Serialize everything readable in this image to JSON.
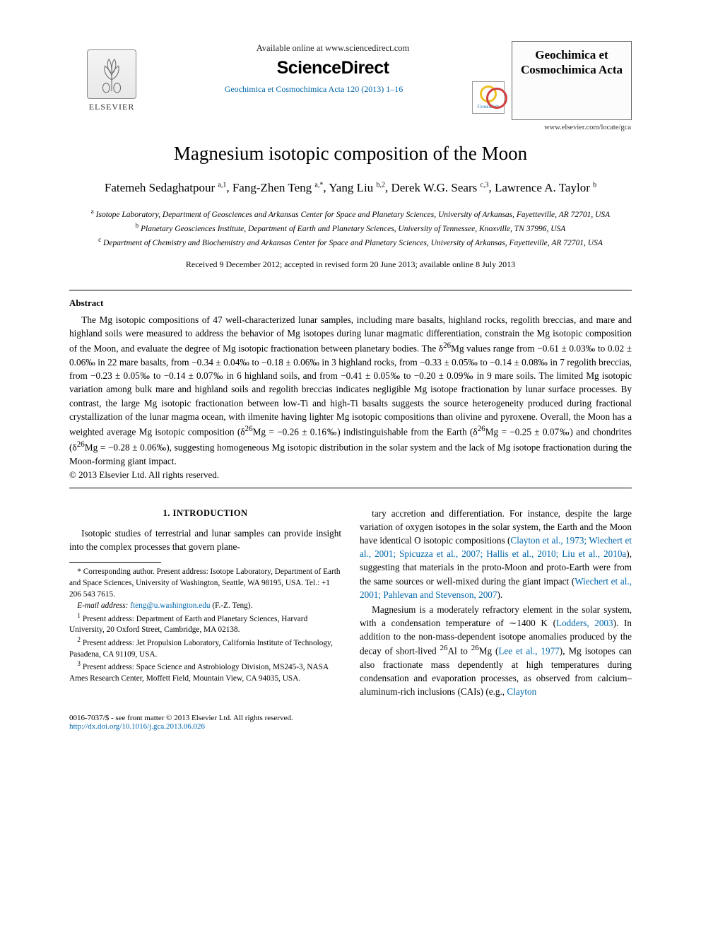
{
  "header": {
    "available_online": "Available online at www.sciencedirect.com",
    "sciencedirect": "ScienceDirect",
    "journal_line": "Geochimica et Cosmochimica Acta 120 (2013) 1–16",
    "elsevier_label": "ELSEVIER",
    "journal_cover": "Geochimica et Cosmochimica Acta",
    "locate": "www.elsevier.com/locate/gca"
  },
  "title": "Magnesium isotopic composition of the Moon",
  "authors_html": "Fatemeh Sedaghatpour <sup>a,1</sup>, Fang-Zhen Teng <sup>a,*</sup>, Yang Liu <sup>b,2</sup>, Derek W.G. Sears <sup>c,3</sup>, Lawrence A. Taylor <sup>b</sup>",
  "affiliations": [
    "<sup>a</sup> Isotope Laboratory, Department of Geosciences and Arkansas Center for Space and Planetary Sciences, University of Arkansas, Fayetteville, AR 72701, USA",
    "<sup>b</sup> Planetary Geosciences Institute, Department of Earth and Planetary Sciences, University of Tennessee, Knoxville, TN 37996, USA",
    "<sup>c</sup> Department of Chemistry and Biochemistry and Arkansas Center for Space and Planetary Sciences, University of Arkansas, Fayetteville, AR 72701, USA"
  ],
  "dates": "Received 9 December 2012; accepted in revised form 20 June 2013; available online 8 July 2013",
  "abstract": {
    "heading": "Abstract",
    "body": "The Mg isotopic compositions of 47 well-characterized lunar samples, including mare basalts, highland rocks, regolith breccias, and mare and highland soils were measured to address the behavior of Mg isotopes during lunar magmatic differentiation, constrain the Mg isotopic composition of the Moon, and evaluate the degree of Mg isotopic fractionation between planetary bodies. The δ<sup>26</sup>Mg values range from −0.61 ± 0.03‰ to 0.02 ± 0.06‰ in 22 mare basalts, from −0.34 ± 0.04‰ to −0.18 ± 0.06‰ in 3 highland rocks, from −0.33 ± 0.05‰ to −0.14 ± 0.08‰ in 7 regolith breccias, from −0.23 ± 0.05‰ to −0.14 ± 0.07‰ in 6 highland soils, and from −0.41 ± 0.05‰ to −0.20 ± 0.09‰ in 9 mare soils. The limited Mg isotopic variation among bulk mare and highland soils and regolith breccias indicates negligible Mg isotope fractionation by lunar surface processes. By contrast, the large Mg isotopic fractionation between low-Ti and high-Ti basalts suggests the source heterogeneity produced during fractional crystallization of the lunar magma ocean, with ilmenite having lighter Mg isotopic compositions than olivine and pyroxene. Overall, the Moon has a weighted average Mg isotopic composition (δ<sup>26</sup>Mg = −0.26 ± 0.16‰) indistinguishable from the Earth (δ<sup>26</sup>Mg = −0.25 ± 0.07‰) and chondrites (δ<sup>26</sup>Mg = −0.28 ± 0.06‰), suggesting homogeneous Mg isotopic distribution in the solar system and the lack of Mg isotope fractionation during the Moon-forming giant impact.",
    "copyright": "© 2013 Elsevier Ltd. All rights reserved."
  },
  "intro": {
    "heading": "1. INTRODUCTION",
    "p1": "Isotopic studies of terrestrial and lunar samples can provide insight into the complex processes that govern plane-",
    "p2_html": "tary accretion and differentiation. For instance, despite the large variation of oxygen isotopes in the solar system, the Earth and the Moon have identical O isotopic compositions (<span class=\"ref\">Clayton et al., 1973; Wiechert et al., 2001; Spicuzza et al., 2007; Hallis et al., 2010; Liu et al., 2010a</span>), suggesting that materials in the proto-Moon and proto-Earth were from the same sources or well-mixed during the giant impact (<span class=\"ref\">Wiechert et al., 2001; Pahlevan and Stevenson, 2007</span>).",
    "p3_html": "Magnesium is a moderately refractory element in the solar system, with a condensation temperature of ∼1400 K (<span class=\"ref\">Lodders, 2003</span>). In addition to the non-mass-dependent isotope anomalies produced by the decay of short-lived <sup>26</sup>Al to <sup>26</sup>Mg (<span class=\"ref\">Lee et al., 1977</span>), Mg isotopes can also fractionate mass dependently at high temperatures during condensation and evaporation processes, as observed from calcium–aluminum-rich inclusions (CAIs) (e.g., <span class=\"ref\">Clayton</span>"
  },
  "footnotes": {
    "corr": "* Corresponding author. Present address: Isotope Laboratory, Department of Earth and Space Sciences, University of Washington, Seattle, WA 98195, USA. Tel.: +1 206 543 7615.",
    "email_label": "E-mail address:",
    "email": "fteng@u.washington.edu",
    "email_name": "(F.-Z. Teng).",
    "n1": "<sup>1</sup> Present address: Department of Earth and Planetary Sciences, Harvard University, 20 Oxford Street, Cambridge, MA 02138.",
    "n2": "<sup>2</sup> Present address: Jet Propulsion Laboratory, California Institute of Technology, Pasadena, CA 91109, USA.",
    "n3": "<sup>3</sup> Present address: Space Science and Astrobiology Division, MS245-3, NASA Ames Research Center, Moffett Field, Mountain View, CA 94035, USA."
  },
  "footer": {
    "left": "0016-7037/$ - see front matter © 2013 Elsevier Ltd. All rights reserved.",
    "doi": "http://dx.doi.org/10.1016/j.gca.2013.06.026"
  },
  "crossmark_label": "CrossMark"
}
